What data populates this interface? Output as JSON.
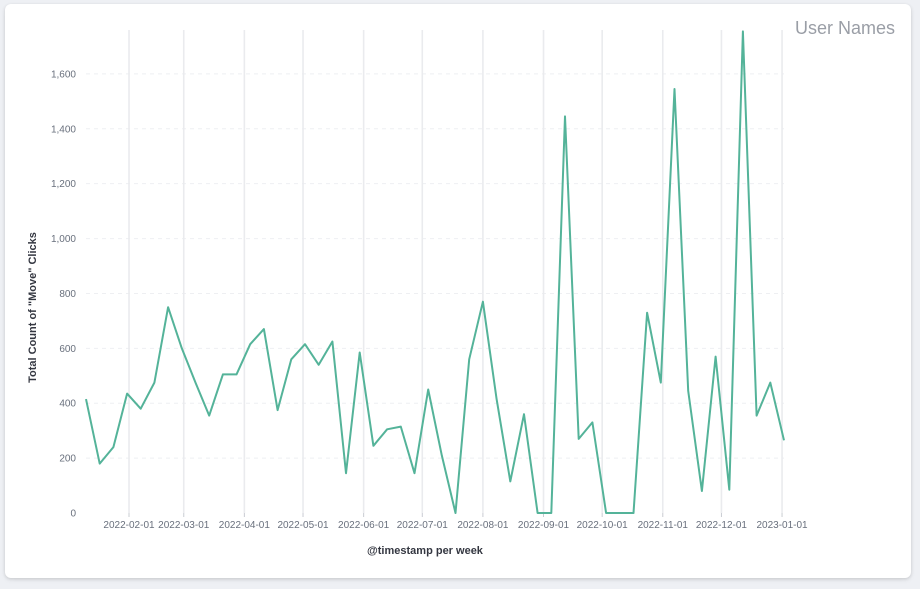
{
  "panel": {
    "legend_title": "User Names"
  },
  "chart_data": {
    "type": "line",
    "xlabel": "@timestamp per week",
    "ylabel": "Total Count of \"Move\" Clicks",
    "ylim": [
      0,
      1760
    ],
    "y_ticks": [
      0,
      200,
      400,
      600,
      800,
      1000,
      1200,
      1400,
      1600
    ],
    "y_tick_labels": [
      "0",
      "200",
      "400",
      "600",
      "800",
      "1,000",
      "1,200",
      "1,400",
      "1,600"
    ],
    "x_range": [
      "2022-01-10",
      "2023-01-02"
    ],
    "x_ticks": [
      "2022-02-01",
      "2022-03-01",
      "2022-04-01",
      "2022-05-01",
      "2022-06-01",
      "2022-07-01",
      "2022-08-01",
      "2022-09-01",
      "2022-10-01",
      "2022-11-01",
      "2022-12-01",
      "2023-01-01"
    ],
    "grid": true,
    "line_color": "#54b399",
    "series": [
      {
        "x": [
          "2022-01-10",
          "2022-01-17",
          "2022-01-24",
          "2022-01-31",
          "2022-02-07",
          "2022-02-14",
          "2022-02-21",
          "2022-02-28",
          "2022-03-07",
          "2022-03-14",
          "2022-03-21",
          "2022-03-28",
          "2022-04-04",
          "2022-04-11",
          "2022-04-18",
          "2022-04-25",
          "2022-05-02",
          "2022-05-09",
          "2022-05-16",
          "2022-05-23",
          "2022-05-30",
          "2022-06-06",
          "2022-06-13",
          "2022-06-20",
          "2022-06-27",
          "2022-07-04",
          "2022-07-11",
          "2022-07-18",
          "2022-07-25",
          "2022-08-01",
          "2022-08-08",
          "2022-08-15",
          "2022-08-22",
          "2022-08-29",
          "2022-09-05",
          "2022-09-12",
          "2022-09-19",
          "2022-09-26",
          "2022-10-03",
          "2022-10-10",
          "2022-10-17",
          "2022-10-24",
          "2022-10-31",
          "2022-11-07",
          "2022-11-14",
          "2022-11-21",
          "2022-11-28",
          "2022-12-05",
          "2022-12-12",
          "2022-12-19",
          "2022-12-26",
          "2023-01-02"
        ],
        "values": [
          415,
          180,
          240,
          435,
          380,
          475,
          750,
          600,
          475,
          355,
          505,
          505,
          615,
          670,
          375,
          560,
          615,
          540,
          625,
          145,
          585,
          245,
          305,
          315,
          145,
          450,
          210,
          0,
          560,
          770,
          415,
          115,
          360,
          0,
          0,
          1445,
          270,
          330,
          0,
          0,
          0,
          730,
          475,
          1545,
          445,
          80,
          570,
          85,
          1755,
          355,
          475,
          265
        ]
      }
    ]
  }
}
